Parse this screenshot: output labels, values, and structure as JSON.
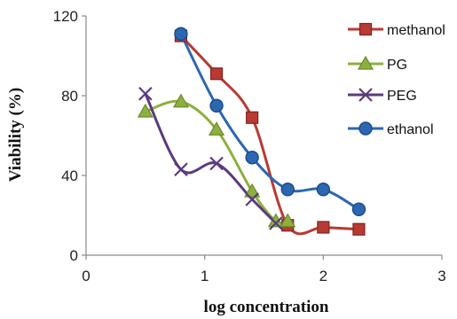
{
  "chart_data": {
    "type": "line",
    "xlabel": "log concentration",
    "ylabel": "Viability (%)",
    "xlim": [
      0,
      3
    ],
    "ylim": [
      0,
      120
    ],
    "x_ticks": [
      0,
      1,
      2,
      3
    ],
    "y_ticks": [
      0,
      40,
      80,
      120
    ],
    "grid": false,
    "legend_position": "right",
    "smooth": true,
    "series": [
      {
        "name": "methanol",
        "color": "#b83a33",
        "marker": "square",
        "x": [
          0.8,
          1.1,
          1.4,
          1.7,
          2.0,
          2.3
        ],
        "y": [
          110,
          91,
          69,
          15,
          14,
          13
        ]
      },
      {
        "name": "PG",
        "color": "#8db03f",
        "marker": "triangle",
        "x": [
          0.5,
          0.8,
          1.1,
          1.4,
          1.6,
          1.7
        ],
        "y": [
          72,
          77,
          63,
          32,
          17,
          17
        ]
      },
      {
        "name": "PEG",
        "color": "#5c3a7e",
        "marker": "x",
        "x": [
          0.5,
          0.8,
          1.1,
          1.4,
          1.6
        ],
        "y": [
          81,
          43,
          46,
          28,
          16
        ]
      },
      {
        "name": "ethanol",
        "color": "#2c67b1",
        "marker": "circle",
        "x": [
          0.8,
          1.1,
          1.4,
          1.7,
          2.0,
          2.3
        ],
        "y": [
          111,
          75,
          49,
          33,
          33,
          23
        ]
      }
    ]
  }
}
